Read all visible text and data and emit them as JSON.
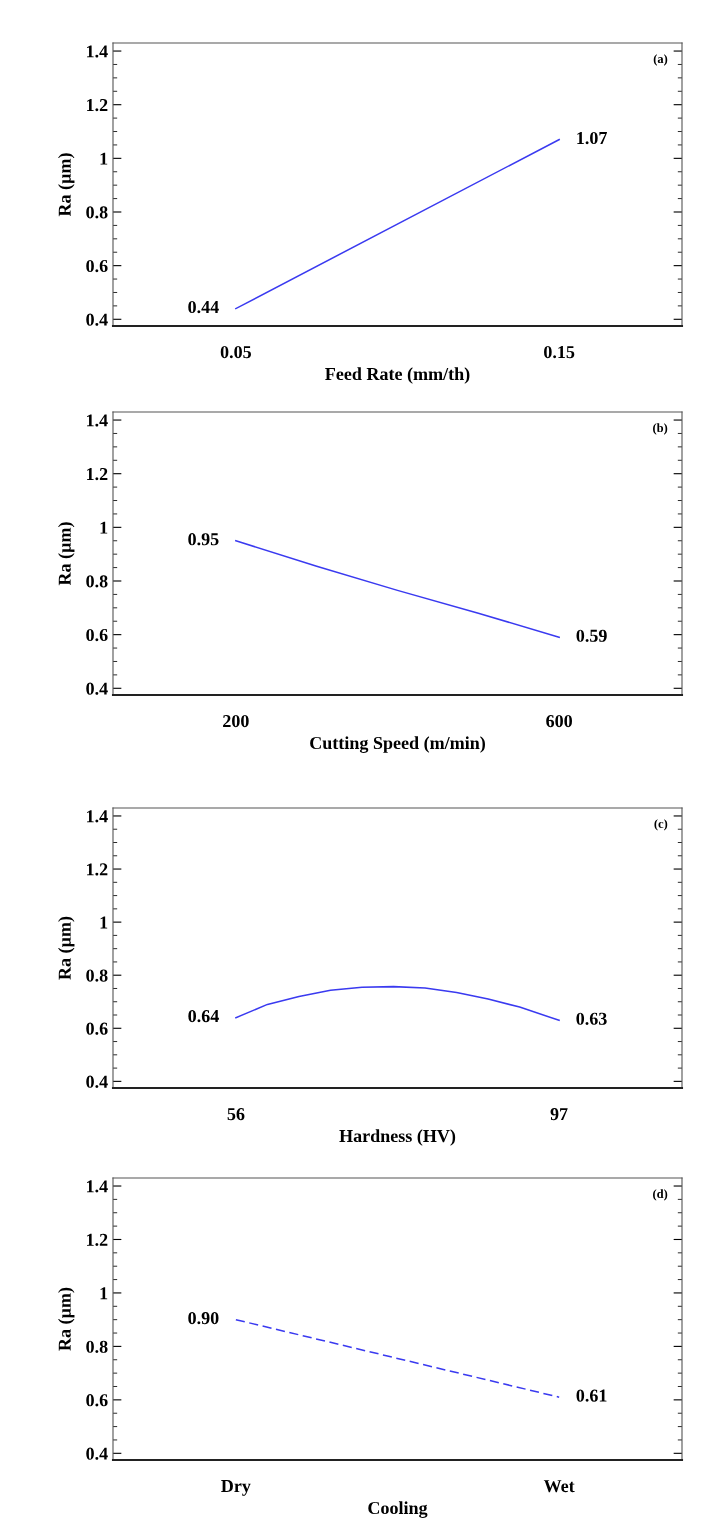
{
  "chart_data": [
    {
      "type": "line",
      "x": [
        0.05,
        0.15
      ],
      "xlim": [
        0.012,
        0.188
      ],
      "xticks": [
        0.05,
        0.15
      ],
      "ylim": [
        0.375,
        1.43
      ],
      "yticks": [
        0.4,
        0.6,
        0.8,
        1,
        1.2,
        1.4
      ],
      "xlabel": "Feed Rate (mm/th)",
      "ylabel": "Ra (µm)",
      "annotations": [
        "(a)"
      ],
      "line_style": "solid",
      "grid": false,
      "series": [
        {
          "color": "#3a3af0",
          "values": [
            0.44,
            1.07
          ],
          "value_labels": [
            "0.44",
            "1.07"
          ]
        }
      ]
    },
    {
      "type": "line",
      "x": [
        200,
        300,
        400,
        500,
        600
      ],
      "xlim": [
        48,
        752
      ],
      "xticks": [
        200,
        600
      ],
      "ylim": [
        0.375,
        1.43
      ],
      "yticks": [
        0.4,
        0.6,
        0.8,
        1,
        1.2,
        1.4
      ],
      "xlabel": "Cutting Speed (m/min)",
      "ylabel": "Ra (µm)",
      "annotations": [
        "(b)"
      ],
      "line_style": "solid",
      "grid": false,
      "series": [
        {
          "color": "#3a3af0",
          "values": [
            0.95,
            0.855,
            0.765,
            0.68,
            0.59
          ],
          "value_labels": [
            "0.95",
            null,
            null,
            null,
            "0.59"
          ]
        }
      ]
    },
    {
      "type": "line",
      "x": [
        56,
        60,
        64,
        68,
        72,
        76,
        80,
        84,
        88,
        92,
        97
      ],
      "xlim": [
        40.4,
        112.6
      ],
      "xticks": [
        56,
        97
      ],
      "ylim": [
        0.375,
        1.43
      ],
      "yticks": [
        0.4,
        0.6,
        0.8,
        1,
        1.2,
        1.4
      ],
      "xlabel": "Hardness (HV)",
      "ylabel": "Ra (µm)",
      "annotations": [
        "(c)"
      ],
      "line_style": "solid",
      "grid": false,
      "series": [
        {
          "color": "#3a3af0",
          "values": [
            0.64,
            0.69,
            0.72,
            0.743,
            0.755,
            0.757,
            0.752,
            0.735,
            0.71,
            0.68,
            0.63
          ],
          "value_labels": [
            "0.64",
            null,
            null,
            null,
            null,
            null,
            null,
            null,
            null,
            null,
            "0.63"
          ]
        }
      ]
    },
    {
      "type": "line",
      "categories": [
        "Dry",
        "Wet"
      ],
      "ylim": [
        0.375,
        1.43
      ],
      "yticks": [
        0.4,
        0.6,
        0.8,
        1,
        1.2,
        1.4
      ],
      "xlabel": "Cooling",
      "ylabel": "Ra (µm)",
      "annotations": [
        "(d)"
      ],
      "line_style": "dashed",
      "grid": false,
      "series": [
        {
          "color": "#3a3af0",
          "values": [
            0.9,
            0.61
          ],
          "value_labels": [
            "0.90",
            "0.61"
          ]
        }
      ]
    }
  ]
}
